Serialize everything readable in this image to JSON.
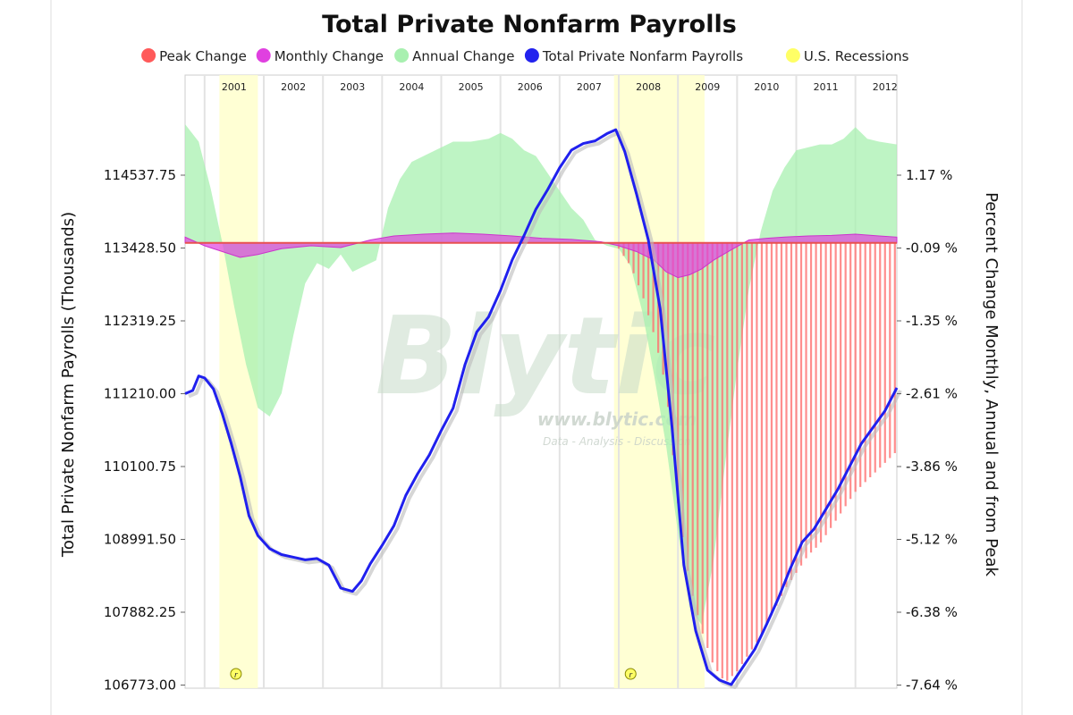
{
  "chart_data": {
    "type": "area",
    "title": "Total Private Nonfarm Payrolls",
    "legend": {
      "placement": "top",
      "items": [
        {
          "label": "Peak Change",
          "color": "#ff5a5a"
        },
        {
          "label": "Monthly Change",
          "color": "#e040e0"
        },
        {
          "label": "Annual Change",
          "color": "#a8f0b0"
        },
        {
          "label": "Total Private Nonfarm Payrolls",
          "color": "#2222ee"
        },
        {
          "label": "U.S. Recessions",
          "color": "#ffff66"
        }
      ]
    },
    "ylabel_left": "Total Private Nonfarm Payrolls (Thousands)",
    "ylabel_right": "Percent Change Monthly, Annual and from Peak",
    "yticks_left": [
      "114537.75",
      "113428.50",
      "112319.25",
      "111210.00",
      "110100.75",
      "108991.50",
      "107882.25",
      "106773.00"
    ],
    "yticks_right": [
      "1.17 %",
      "-0.09 %",
      "-1.35 %",
      "-2.61 %",
      "-3.86 %",
      "-5.12 %",
      "-6.38 %",
      "-7.64 %"
    ],
    "ylim_left": [
      106773.0,
      115200
    ],
    "ylim_right": [
      -7.64,
      1.8
    ],
    "years": [
      "2001",
      "2002",
      "2003",
      "2004",
      "2005",
      "2006",
      "2007",
      "2008",
      "2009",
      "2010",
      "2011",
      "2012"
    ],
    "x_range": [
      2000.67,
      2012.7
    ],
    "grid": "vertical year lines",
    "recessions": [
      [
        2001.25,
        2001.9
      ],
      [
        2007.92,
        2009.45
      ]
    ],
    "recession_marker": "r",
    "series": [
      {
        "name": "Total Private Nonfarm Payrolls",
        "x": [
          2000.67,
          2000.8,
          2000.9,
          2001.0,
          2001.15,
          2001.3,
          2001.45,
          2001.6,
          2001.75,
          2001.9,
          2002.1,
          2002.3,
          2002.5,
          2002.7,
          2002.9,
          2003.1,
          2003.3,
          2003.5,
          2003.65,
          2003.8,
          2004.0,
          2004.2,
          2004.4,
          2004.6,
          2004.8,
          2005.0,
          2005.2,
          2005.4,
          2005.6,
          2005.8,
          2006.0,
          2006.2,
          2006.4,
          2006.6,
          2006.8,
          2007.0,
          2007.2,
          2007.4,
          2007.6,
          2007.8,
          2007.95,
          2008.1,
          2008.3,
          2008.5,
          2008.7,
          2008.9,
          2009.1,
          2009.3,
          2009.5,
          2009.7,
          2009.9,
          2010.1,
          2010.3,
          2010.5,
          2010.7,
          2010.9,
          2011.1,
          2011.3,
          2011.5,
          2011.7,
          2011.9,
          2012.1,
          2012.3,
          2012.5,
          2012.7
        ],
        "values": [
          111210,
          111260,
          111480,
          111450,
          111280,
          110900,
          110450,
          109950,
          109350,
          109050,
          108850,
          108760,
          108720,
          108680,
          108700,
          108600,
          108250,
          108200,
          108360,
          108620,
          108900,
          109200,
          109660,
          109990,
          110280,
          110650,
          110990,
          111650,
          112150,
          112380,
          112780,
          113250,
          113620,
          114020,
          114320,
          114650,
          114920,
          115020,
          115060,
          115170,
          115230,
          114900,
          114250,
          113550,
          112500,
          110700,
          108600,
          107600,
          107000,
          106850,
          106780,
          107050,
          107320,
          107700,
          108100,
          108550,
          108950,
          109150,
          109450,
          109750,
          110100,
          110450,
          110700,
          110950,
          111300
        ]
      },
      {
        "name": "Annual Change",
        "x": [
          2000.67,
          2000.9,
          2001.1,
          2001.3,
          2001.5,
          2001.7,
          2001.9,
          2002.1,
          2002.3,
          2002.5,
          2002.7,
          2002.9,
          2003.1,
          2003.3,
          2003.5,
          2003.7,
          2003.9,
          2004.1,
          2004.3,
          2004.5,
          2004.7,
          2004.9,
          2005.2,
          2005.5,
          2005.8,
          2006.0,
          2006.2,
          2006.4,
          2006.6,
          2006.8,
          2007.0,
          2007.2,
          2007.4,
          2007.6,
          2007.8,
          2008.0,
          2008.2,
          2008.4,
          2008.6,
          2008.8,
          2009.0,
          2009.2,
          2009.4,
          2009.6,
          2009.8,
          2010.0,
          2010.2,
          2010.4,
          2010.6,
          2010.8,
          2011.0,
          2011.2,
          2011.4,
          2011.6,
          2011.8,
          2012.0,
          2012.2,
          2012.4,
          2012.7
        ],
        "values": [
          2.05,
          1.75,
          0.95,
          0.0,
          -1.1,
          -2.1,
          -2.85,
          -3.0,
          -2.6,
          -1.6,
          -0.7,
          -0.35,
          -0.45,
          -0.2,
          -0.5,
          -0.4,
          -0.3,
          0.6,
          1.1,
          1.4,
          1.5,
          1.6,
          1.75,
          1.75,
          1.8,
          1.9,
          1.8,
          1.6,
          1.5,
          1.2,
          0.9,
          0.6,
          0.4,
          0.05,
          -0.05,
          -0.1,
          -0.4,
          -1.2,
          -2.3,
          -3.5,
          -5.0,
          -6.3,
          -6.6,
          -5.5,
          -3.8,
          -2.2,
          -0.8,
          0.2,
          0.9,
          1.3,
          1.6,
          1.65,
          1.7,
          1.7,
          1.8,
          2.0,
          1.8,
          1.75,
          1.7
        ]
      },
      {
        "name": "Monthly Change",
        "x": [
          2000.67,
          2001.0,
          2001.3,
          2001.6,
          2001.9,
          2002.3,
          2002.8,
          2003.3,
          2003.8,
          2004.2,
          2004.7,
          2005.2,
          2005.7,
          2006.2,
          2006.7,
          2007.2,
          2007.7,
          2008.0,
          2008.3,
          2008.6,
          2008.8,
          2009.0,
          2009.2,
          2009.4,
          2009.6,
          2009.9,
          2010.2,
          2010.5,
          2010.8,
          2011.2,
          2011.6,
          2012.0,
          2012.4,
          2012.7
        ],
        "values": [
          0.1,
          -0.05,
          -0.15,
          -0.25,
          -0.2,
          -0.1,
          -0.05,
          -0.08,
          0.05,
          0.12,
          0.15,
          0.17,
          0.15,
          0.12,
          0.08,
          0.06,
          0.02,
          -0.05,
          -0.15,
          -0.3,
          -0.5,
          -0.6,
          -0.55,
          -0.45,
          -0.3,
          -0.12,
          0.05,
          0.08,
          0.1,
          0.12,
          0.13,
          0.15,
          0.12,
          0.1
        ]
      },
      {
        "name": "Peak Change",
        "x": [
          2008.0,
          2008.2,
          2008.4,
          2008.6,
          2008.8,
          2009.0,
          2009.2,
          2009.4,
          2009.6,
          2009.8,
          2010.0,
          2010.2,
          2010.4,
          2010.6,
          2010.8,
          2011.0,
          2011.2,
          2011.4,
          2011.6,
          2011.8,
          2012.0,
          2012.2,
          2012.4,
          2012.7
        ],
        "values": [
          -0.1,
          -0.4,
          -0.9,
          -1.6,
          -2.5,
          -4.5,
          -5.9,
          -6.7,
          -7.3,
          -7.6,
          -7.4,
          -7.1,
          -6.8,
          -6.4,
          -6.0,
          -5.7,
          -5.4,
          -5.2,
          -4.9,
          -4.6,
          -4.3,
          -4.1,
          -3.9,
          -3.6
        ]
      }
    ]
  },
  "watermark": {
    "logo": "Blytic",
    "url": "www.blytic.com",
    "tagline": "Data - Analysis - Discussion"
  }
}
